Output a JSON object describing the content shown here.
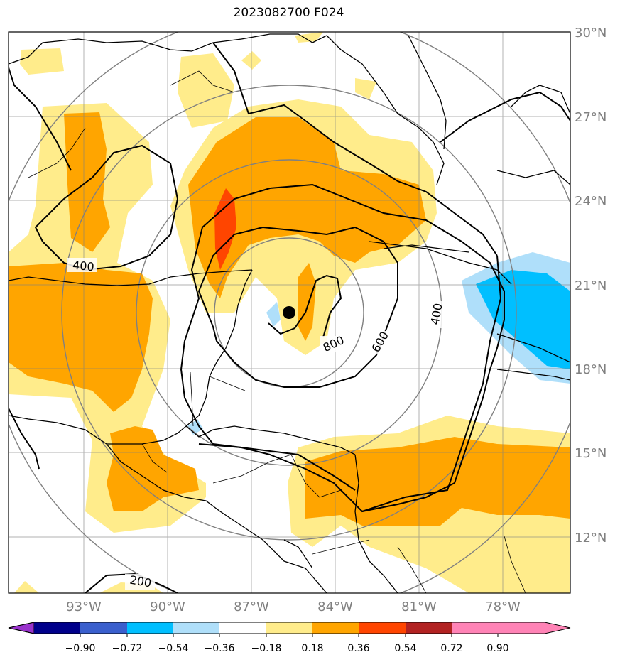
{
  "title": "2023082700 F024",
  "map": {
    "lat_labels": [
      "30°N",
      "27°N",
      "24°N",
      "21°N",
      "18°N",
      "15°N",
      "12°N"
    ],
    "lon_labels": [
      "93°W",
      "90°W",
      "87°W",
      "84°W",
      "81°W",
      "78°W"
    ],
    "storm_marker": "storm-center-dot",
    "contour_labels": [
      "400",
      "800",
      "600",
      "400",
      "200"
    ]
  },
  "colorbar": {
    "colors": [
      "#9932cc",
      "#00008b",
      "#3a5fcd",
      "#00bfff",
      "#afdffa",
      "#ffffff",
      "#ffec8b",
      "#ffa500",
      "#ff4500",
      "#b22222",
      "#ff83b6"
    ],
    "tick_labels": [
      "−0.90",
      "−0.72",
      "−0.54",
      "−0.36",
      "−0.18",
      "0.18",
      "0.36",
      "0.54",
      "0.72",
      "0.90"
    ]
  }
}
